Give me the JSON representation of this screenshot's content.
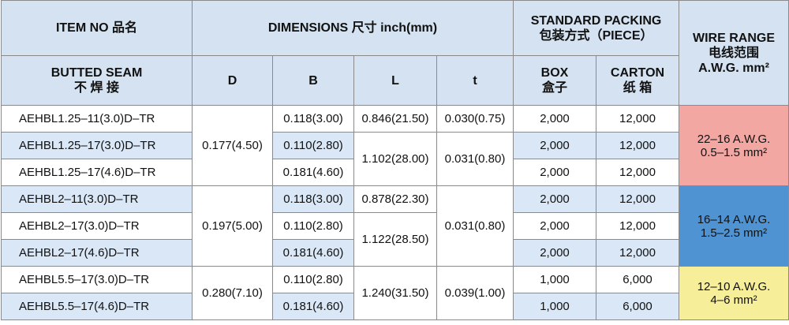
{
  "header": {
    "item": [
      "ITEM NO 品名"
    ],
    "dimensions": [
      "DIMENSIONS 尺寸 inch(mm)"
    ],
    "packing": [
      "STANDARD PACKING",
      "包装方式（PIECE）"
    ],
    "wire": [
      "WIRE RANGE",
      "电线范围",
      "A.W.G. mm²"
    ],
    "seam": [
      "BUTTED  SEAM",
      "不 焊 接"
    ],
    "D": "D",
    "B": "B",
    "L": "L",
    "t": "t",
    "box": [
      "BOX",
      "盒子"
    ],
    "carton": [
      "CARTON",
      "纸 箱"
    ]
  },
  "rows": [
    {
      "item": "AEHBL1.25–11(3.0)D–TR",
      "D": "0.177(4.50)",
      "B": "0.118(3.00)",
      "L": "0.846(21.50)",
      "t": "0.030(0.75)",
      "box": "2,000",
      "carton": "12,000",
      "wire": [
        "22–16 A.W.G.",
        "0.5–1.5  mm²"
      ]
    },
    {
      "item": "AEHBL1.25–17(3.0)D–TR",
      "B": "0.110(2.80)",
      "L": "1.102(28.00)",
      "t": "0.031(0.80)",
      "box": "2,000",
      "carton": "12,000"
    },
    {
      "item": "AEHBL1.25–17(4.6)D–TR",
      "B": "0.181(4.60)",
      "box": "2,000",
      "carton": "12,000"
    },
    {
      "item": "AEHBL2–11(3.0)D–TR",
      "D": "0.197(5.00)",
      "B": "0.118(3.00)",
      "L": "0.878(22.30)",
      "t": "0.031(0.80)",
      "box": "2,000",
      "carton": "12,000",
      "wire": [
        "16–14 A.W.G.",
        "1.5–2.5  mm²"
      ]
    },
    {
      "item": "AEHBL2–17(3.0)D–TR",
      "B": "0.110(2.80)",
      "L": "1.122(28.50)",
      "box": "2,000",
      "carton": "12,000"
    },
    {
      "item": "AEHBL2–17(4.6)D–TR",
      "B": "0.181(4.60)",
      "box": "2,000",
      "carton": "12,000"
    },
    {
      "item": "AEHBL5.5–17(3.0)D–TR",
      "D": "0.280(7.10)",
      "B": "0.110(2.80)",
      "L": "1.240(31.50)",
      "t": "0.039(1.00)",
      "box": "1,000",
      "carton": "6,000",
      "wire": [
        "12–10  A.W.G.",
        "4–6  mm²"
      ]
    },
    {
      "item": "AEHBL5.5–17(4.6)D–TR",
      "B": "0.181(4.60)",
      "box": "1,000",
      "carton": "6,000"
    }
  ]
}
